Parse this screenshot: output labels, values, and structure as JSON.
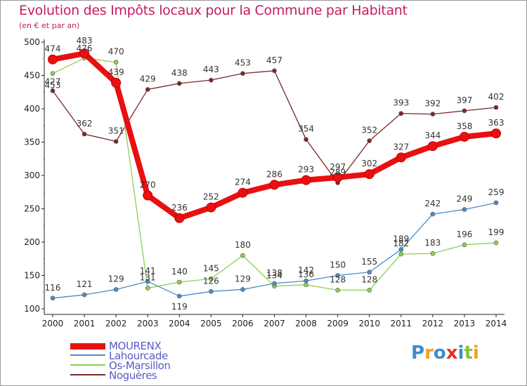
{
  "header": {
    "title": "Evolution des Impôts locaux pour la Commune par Habitant",
    "subtitle": "(en € et par an)"
  },
  "brand": {
    "text": "Proxiti"
  },
  "chart_data": {
    "type": "line",
    "categories": [
      "2000",
      "2001",
      "2002",
      "2003",
      "2004",
      "2005",
      "2006",
      "2007",
      "2008",
      "2009",
      "2010",
      "2011",
      "2012",
      "2013",
      "2014"
    ],
    "ylim": [
      100,
      500
    ],
    "yticks": [
      100,
      150,
      200,
      250,
      300,
      350,
      400,
      450,
      500
    ],
    "grid": false,
    "legend_position": "bottom-left",
    "series": [
      {
        "name": "MOURENX",
        "color": "#e81010",
        "values": [
          474,
          483,
          439,
          270,
          236,
          252,
          274,
          286,
          293,
          297,
          302,
          327,
          344,
          358,
          363
        ]
      },
      {
        "name": "Lahourcade",
        "color": "#4a8cc8",
        "values": [
          116,
          121,
          129,
          141,
          119,
          126,
          129,
          138,
          142,
          150,
          155,
          189,
          242,
          249,
          259
        ]
      },
      {
        "name": "Os-Marsillon",
        "color": "#8cd050",
        "values": [
          453,
          476,
          470,
          131,
          140,
          145,
          180,
          134,
          136,
          128,
          128,
          182,
          183,
          196,
          199
        ]
      },
      {
        "name": "Noguères",
        "color": "#7a2828",
        "values": [
          427,
          362,
          351,
          429,
          438,
          443,
          453,
          457,
          354,
          289,
          352,
          393,
          392,
          397,
          402
        ]
      }
    ]
  }
}
